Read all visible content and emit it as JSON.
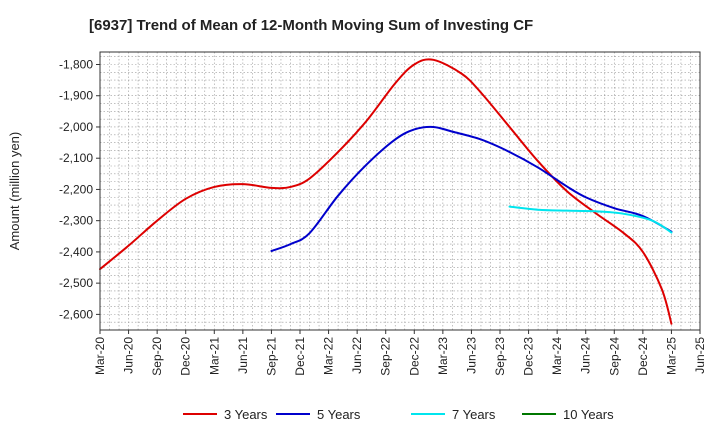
{
  "chart_data": {
    "type": "line",
    "title": "[6937]  Trend of Mean of 12-Month Moving Sum of Investing CF",
    "xlabel": "",
    "ylabel": "Amount (million yen)",
    "ylim": [
      -2650,
      -1760
    ],
    "yticks": [
      -1800,
      -1900,
      -2000,
      -2100,
      -2200,
      -2300,
      -2400,
      -2500,
      -2600
    ],
    "ytick_labels": [
      "-1,800",
      "-1,900",
      "-2,000",
      "-2,100",
      "-2,200",
      "-2,300",
      "-2,400",
      "-2,500",
      "-2,600"
    ],
    "x_start": "Mar-20",
    "x_months": 63,
    "xticks": [
      0,
      3,
      6,
      9,
      12,
      15,
      18,
      21,
      24,
      27,
      30,
      33,
      36,
      39,
      42,
      45,
      48,
      51,
      54,
      57,
      60,
      63
    ],
    "xtick_labels": [
      "Mar-20",
      "Jun-20",
      "Sep-20",
      "Dec-20",
      "Mar-21",
      "Jun-21",
      "Sep-21",
      "Dec-21",
      "Mar-22",
      "Jun-22",
      "Sep-22",
      "Dec-22",
      "Mar-23",
      "Jun-23",
      "Sep-23",
      "Dec-23",
      "Mar-24",
      "Jun-24",
      "Sep-24",
      "Dec-24",
      "Mar-25",
      "Jun-25"
    ],
    "grid": true,
    "legend_position": "bottom",
    "series": [
      {
        "name": "3 Years",
        "color": "#dd0000",
        "x": [
          0,
          3,
          6,
          9,
          12,
          15,
          18,
          20,
          22,
          25,
          28,
          31,
          33,
          35,
          38,
          40,
          43,
          46,
          49,
          52,
          55,
          57,
          59,
          60
        ],
        "values": [
          -2455,
          -2380,
          -2300,
          -2230,
          -2192,
          -2183,
          -2195,
          -2192,
          -2165,
          -2080,
          -1980,
          -1860,
          -1800,
          -1785,
          -1830,
          -1890,
          -2000,
          -2110,
          -2205,
          -2275,
          -2340,
          -2400,
          -2520,
          -2630
        ]
      },
      {
        "name": "5 Years",
        "color": "#0000cc",
        "x": [
          18,
          20,
          22,
          25,
          28,
          31,
          33,
          35,
          37,
          40,
          43,
          46,
          49,
          51,
          54,
          57,
          60
        ],
        "values": [
          -2397,
          -2375,
          -2340,
          -2220,
          -2120,
          -2040,
          -2008,
          -2000,
          -2015,
          -2040,
          -2080,
          -2130,
          -2190,
          -2225,
          -2260,
          -2285,
          -2335
        ]
      },
      {
        "name": "7 Years",
        "color": "#00e5ee",
        "x": [
          43,
          46,
          49,
          52,
          55,
          58,
          60
        ],
        "values": [
          -2255,
          -2265,
          -2268,
          -2270,
          -2278,
          -2300,
          -2338
        ]
      },
      {
        "name": "10 Years",
        "color": "#007700",
        "x": [],
        "values": []
      }
    ]
  }
}
